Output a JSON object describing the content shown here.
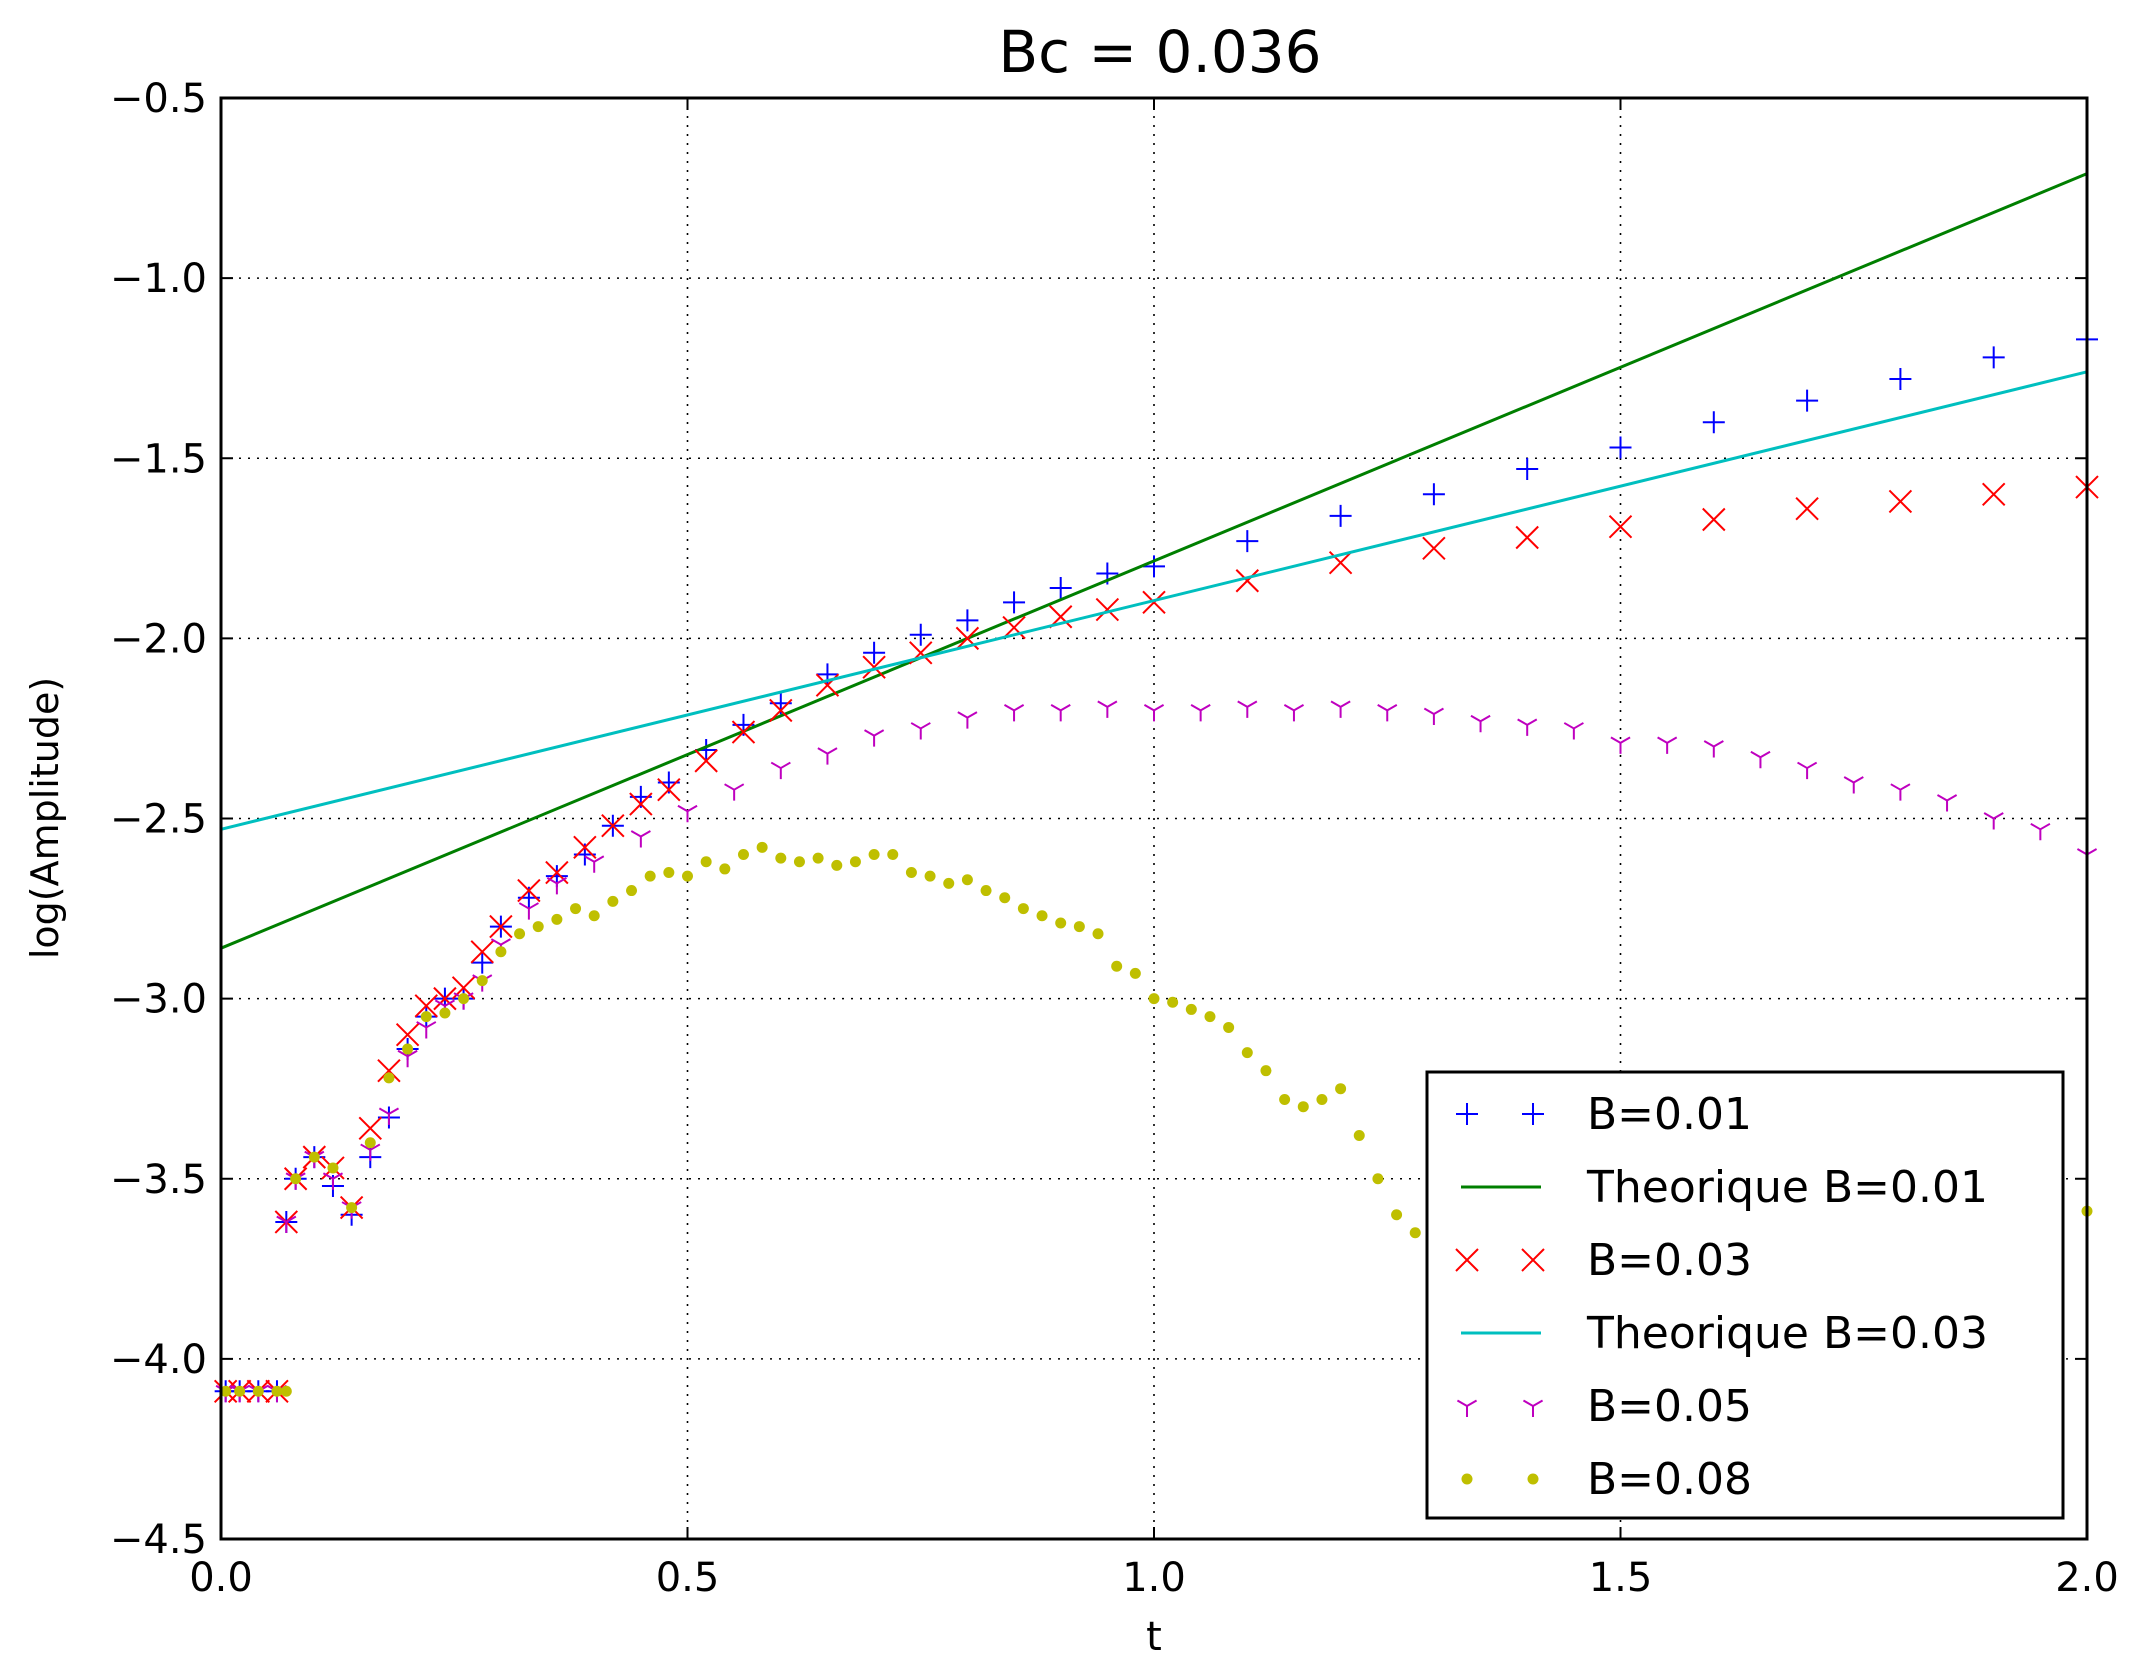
{
  "chart_data": {
    "type": "scatter",
    "title": "Bc = 0.036",
    "xlabel": "t",
    "ylabel": "log(Amplitude)",
    "xlim": [
      0.0,
      2.0
    ],
    "ylim": [
      -4.5,
      -0.5
    ],
    "xticks": [
      0.0,
      0.5,
      1.0,
      1.5,
      2.0
    ],
    "xtick_labels": [
      "0.0",
      "0.5",
      "1.0",
      "1.5",
      "2.0"
    ],
    "yticks": [
      -0.5,
      -1.0,
      -1.5,
      -2.0,
      -2.5,
      -3.0,
      -3.5,
      -4.0,
      -4.5
    ],
    "ytick_labels": [
      "−0.5",
      "−1.0",
      "−1.5",
      "−2.0",
      "−2.5",
      "−3.0",
      "−3.5",
      "−4.0",
      "−4.5"
    ],
    "grid": true,
    "legend_position": "lower-right",
    "series": [
      {
        "name": "B=0.01",
        "marker": "plus",
        "color": "#0000ff",
        "x": [
          0.005,
          0.02,
          0.04,
          0.06,
          0.07,
          0.08,
          0.1,
          0.12,
          0.14,
          0.16,
          0.18,
          0.2,
          0.22,
          0.24,
          0.26,
          0.28,
          0.3,
          0.33,
          0.36,
          0.39,
          0.42,
          0.45,
          0.48,
          0.52,
          0.56,
          0.6,
          0.65,
          0.7,
          0.75,
          0.8,
          0.85,
          0.9,
          0.95,
          1.0,
          1.1,
          1.2,
          1.3,
          1.4,
          1.5,
          1.6,
          1.7,
          1.8,
          1.9,
          2.0
        ],
        "y": [
          -4.09,
          -4.09,
          -4.09,
          -4.09,
          -3.62,
          -3.5,
          -3.44,
          -3.52,
          -3.6,
          -3.44,
          -3.33,
          -3.14,
          -3.05,
          -3.0,
          -3.0,
          -2.9,
          -2.8,
          -2.72,
          -2.66,
          -2.6,
          -2.52,
          -2.44,
          -2.4,
          -2.31,
          -2.24,
          -2.18,
          -2.1,
          -2.04,
          -1.99,
          -1.95,
          -1.9,
          -1.86,
          -1.82,
          -1.8,
          -1.73,
          -1.66,
          -1.6,
          -1.53,
          -1.47,
          -1.4,
          -1.34,
          -1.28,
          -1.22,
          -1.17
        ]
      },
      {
        "name": "Theorique B=0.01",
        "marker": "line",
        "color": "#007f00",
        "x": [
          0.0,
          2.0
        ],
        "y": [
          -2.86,
          -0.71
        ]
      },
      {
        "name": "B=0.03",
        "marker": "x",
        "color": "#ff0000",
        "x": [
          0.005,
          0.02,
          0.04,
          0.06,
          0.07,
          0.08,
          0.1,
          0.12,
          0.14,
          0.16,
          0.18,
          0.2,
          0.22,
          0.24,
          0.26,
          0.28,
          0.3,
          0.33,
          0.36,
          0.39,
          0.42,
          0.45,
          0.48,
          0.52,
          0.56,
          0.6,
          0.65,
          0.7,
          0.75,
          0.8,
          0.85,
          0.9,
          0.95,
          1.0,
          1.1,
          1.2,
          1.3,
          1.4,
          1.5,
          1.6,
          1.7,
          1.8,
          1.9,
          2.0
        ],
        "y": [
          -4.09,
          -4.09,
          -4.09,
          -4.09,
          -3.62,
          -3.5,
          -3.44,
          -3.47,
          -3.58,
          -3.36,
          -3.2,
          -3.1,
          -3.02,
          -3.0,
          -2.97,
          -2.87,
          -2.8,
          -2.7,
          -2.65,
          -2.58,
          -2.52,
          -2.46,
          -2.42,
          -2.34,
          -2.26,
          -2.2,
          -2.13,
          -2.08,
          -2.04,
          -2.0,
          -1.97,
          -1.94,
          -1.92,
          -1.9,
          -1.84,
          -1.79,
          -1.75,
          -1.72,
          -1.69,
          -1.67,
          -1.64,
          -1.62,
          -1.6,
          -1.58
        ]
      },
      {
        "name": "Theorique B=0.03",
        "marker": "line",
        "color": "#00bfbf",
        "x": [
          0.0,
          2.0
        ],
        "y": [
          -2.53,
          -1.26
        ]
      },
      {
        "name": "B=0.05",
        "marker": "tri",
        "color": "#bf00bf",
        "x": [
          0.005,
          0.02,
          0.04,
          0.06,
          0.07,
          0.08,
          0.1,
          0.12,
          0.14,
          0.16,
          0.18,
          0.2,
          0.22,
          0.24,
          0.26,
          0.28,
          0.3,
          0.33,
          0.36,
          0.4,
          0.45,
          0.5,
          0.55,
          0.6,
          0.65,
          0.7,
          0.75,
          0.8,
          0.85,
          0.9,
          0.95,
          1.0,
          1.05,
          1.1,
          1.15,
          1.2,
          1.25,
          1.3,
          1.35,
          1.4,
          1.45,
          1.5,
          1.55,
          1.6,
          1.65,
          1.7,
          1.75,
          1.8,
          1.85,
          1.9,
          1.95,
          2.0
        ],
        "y": [
          -4.09,
          -4.09,
          -4.09,
          -4.09,
          -3.62,
          -3.5,
          -3.44,
          -3.5,
          -3.58,
          -3.42,
          -3.32,
          -3.16,
          -3.08,
          -3.02,
          -3.0,
          -2.95,
          -2.85,
          -2.75,
          -2.68,
          -2.62,
          -2.55,
          -2.48,
          -2.42,
          -2.36,
          -2.32,
          -2.27,
          -2.25,
          -2.22,
          -2.2,
          -2.2,
          -2.19,
          -2.2,
          -2.2,
          -2.19,
          -2.2,
          -2.19,
          -2.2,
          -2.21,
          -2.23,
          -2.24,
          -2.25,
          -2.29,
          -2.29,
          -2.3,
          -2.33,
          -2.36,
          -2.4,
          -2.42,
          -2.45,
          -2.5,
          -2.53,
          -2.6
        ]
      },
      {
        "name": "B=0.08",
        "marker": "dot",
        "color": "#bfbf00",
        "x": [
          0.005,
          0.02,
          0.04,
          0.06,
          0.07,
          0.08,
          0.1,
          0.12,
          0.14,
          0.16,
          0.18,
          0.2,
          0.22,
          0.24,
          0.26,
          0.28,
          0.3,
          0.32,
          0.34,
          0.36,
          0.38,
          0.4,
          0.42,
          0.44,
          0.46,
          0.48,
          0.5,
          0.52,
          0.54,
          0.56,
          0.58,
          0.6,
          0.62,
          0.64,
          0.66,
          0.68,
          0.7,
          0.72,
          0.74,
          0.76,
          0.78,
          0.8,
          0.82,
          0.84,
          0.86,
          0.88,
          0.9,
          0.92,
          0.94,
          0.96,
          0.98,
          1.0,
          1.02,
          1.04,
          1.06,
          1.08,
          1.1,
          1.12,
          1.14,
          1.16,
          1.18,
          1.2,
          1.22,
          1.24,
          1.26,
          1.28,
          1.3,
          1.5,
          1.7,
          1.9,
          1.95,
          2.0
        ],
        "y": [
          -4.09,
          -4.09,
          -4.09,
          -4.09,
          -4.09,
          -3.5,
          -3.44,
          -3.47,
          -3.58,
          -3.4,
          -3.22,
          -3.14,
          -3.05,
          -3.04,
          -3.0,
          -2.95,
          -2.87,
          -2.82,
          -2.8,
          -2.78,
          -2.75,
          -2.77,
          -2.73,
          -2.7,
          -2.66,
          -2.65,
          -2.66,
          -2.62,
          -2.64,
          -2.6,
          -2.58,
          -2.61,
          -2.62,
          -2.61,
          -2.63,
          -2.62,
          -2.6,
          -2.6,
          -2.65,
          -2.66,
          -2.68,
          -2.67,
          -2.7,
          -2.72,
          -2.75,
          -2.77,
          -2.79,
          -2.8,
          -2.82,
          -2.91,
          -2.93,
          -3.0,
          -3.01,
          -3.03,
          -3.05,
          -3.08,
          -3.15,
          -3.2,
          -3.28,
          -3.3,
          -3.28,
          -3.25,
          -3.38,
          -3.5,
          -3.6,
          -3.65,
          -3.62,
          -3.6,
          -3.6,
          -3.6,
          -3.6,
          -3.59
        ]
      }
    ]
  }
}
